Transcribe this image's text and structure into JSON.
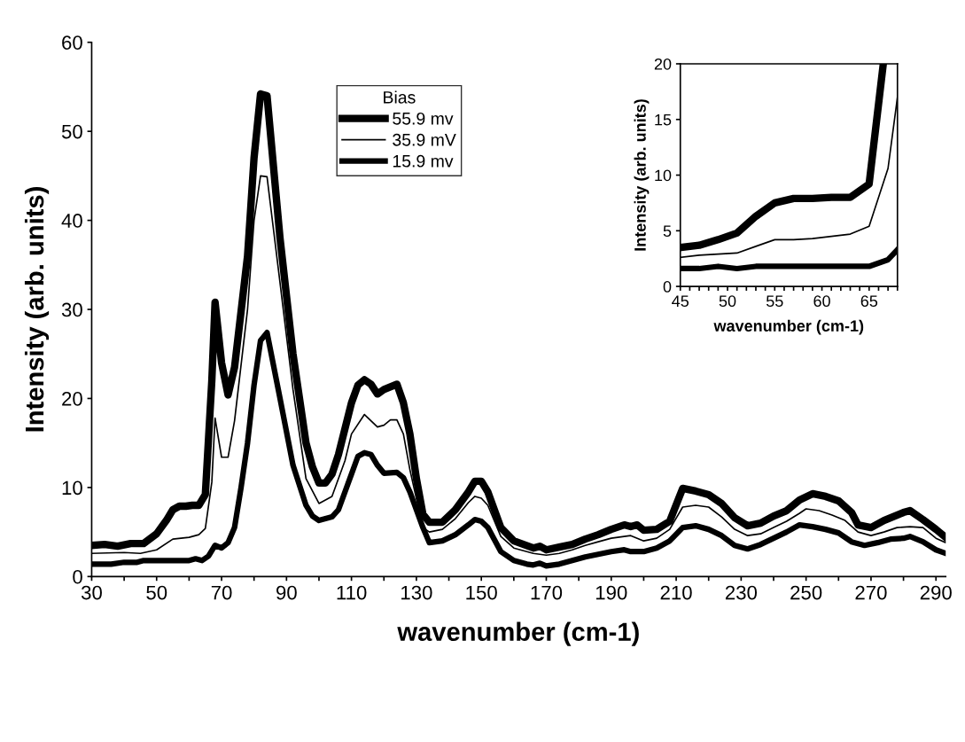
{
  "chart_data": [
    {
      "type": "line",
      "xlabel": "wavenumber (cm-1)",
      "ylabel": "Intensity (arb. units)",
      "legend_title": "Bias",
      "legend": "top",
      "marker": "none",
      "line_style": "solid",
      "grid": false,
      "xlim": [
        30,
        293
      ],
      "ylim": [
        0,
        60
      ],
      "yticks": [
        0,
        10,
        20,
        30,
        40,
        50,
        60
      ],
      "xticks": [
        30,
        {
          "value": 40,
          "label": null
        },
        50,
        {
          "value": 60,
          "label": null
        },
        70,
        {
          "value": 80,
          "label": null
        },
        90,
        {
          "value": 100,
          "label": null
        },
        110,
        {
          "value": 120,
          "label": null
        },
        130,
        {
          "value": 140,
          "label": null
        },
        150,
        {
          "value": 160,
          "label": null
        },
        170,
        {
          "value": 180,
          "label": null
        },
        190,
        {
          "value": 200,
          "label": null
        },
        210,
        {
          "value": 220,
          "label": null
        },
        230,
        {
          "value": 240,
          "label": null
        },
        250,
        {
          "value": 260,
          "label": null
        },
        270,
        {
          "value": 280,
          "label": null
        },
        290
      ],
      "series": [
        {
          "name": "55.9 mv",
          "color": "#000000",
          "x": [
            30,
            34,
            38,
            42,
            46,
            50,
            53,
            55,
            57,
            59,
            61,
            63,
            65,
            67,
            68,
            70,
            72,
            74,
            78,
            80,
            82,
            84,
            88,
            92,
            96,
            98,
            100,
            102,
            104,
            106,
            110,
            112,
            114,
            116,
            118,
            120,
            124,
            126,
            128,
            130,
            132,
            134,
            138,
            142,
            146,
            148,
            150,
            152,
            156,
            160,
            166,
            168,
            170,
            174,
            178,
            182,
            186,
            190,
            194,
            196,
            198,
            200,
            204,
            208,
            212,
            216,
            220,
            224,
            228,
            232,
            236,
            240,
            244,
            248,
            252,
            256,
            260,
            264,
            266,
            270,
            274,
            278,
            280,
            282,
            286,
            290,
            293
          ],
          "values": [
            3.5,
            3.6,
            3.4,
            3.7,
            3.7,
            4.8,
            6.3,
            7.5,
            7.9,
            7.9,
            8.0,
            8.0,
            9.2,
            22,
            30.8,
            24,
            20.4,
            23.5,
            36,
            47,
            54.2,
            54,
            38,
            25,
            15,
            12.3,
            10.5,
            10.5,
            11.5,
            13.7,
            19.5,
            21.5,
            22.1,
            21.6,
            20.5,
            21,
            21.6,
            19.5,
            16,
            11,
            7,
            6.1,
            6.1,
            7.5,
            9.5,
            10.7,
            10.7,
            9.5,
            5.5,
            4,
            3.2,
            3.4,
            3.0,
            3.3,
            3.6,
            4.2,
            4.7,
            5.3,
            5.8,
            5.6,
            5.8,
            5.2,
            5.3,
            6.2,
            9.9,
            9.6,
            9.2,
            8.2,
            6.6,
            5.7,
            6,
            6.8,
            7.4,
            8.6,
            9.3,
            9.0,
            8.5,
            7.2,
            5.8,
            5.5,
            6.3,
            6.9,
            7.2,
            7.4,
            6.4,
            5.3,
            4.4
          ]
        },
        {
          "name": "35.9 mV",
          "color": "#000000",
          "x": [
            30,
            40,
            45,
            50,
            55,
            60,
            63,
            65,
            67,
            68,
            70,
            72,
            74,
            78,
            80,
            82,
            84,
            88,
            92,
            96,
            100,
            104,
            108,
            110,
            114,
            118,
            120,
            122,
            124,
            126,
            128,
            132,
            134,
            138,
            142,
            146,
            148,
            150,
            152,
            156,
            160,
            166,
            170,
            174,
            178,
            182,
            186,
            190,
            196,
            200,
            204,
            208,
            212,
            216,
            220,
            224,
            228,
            232,
            236,
            240,
            244,
            248,
            250,
            254,
            258,
            262,
            266,
            270,
            274,
            278,
            282,
            286,
            290,
            293
          ],
          "values": [
            2.6,
            2.7,
            2.6,
            3.0,
            4.2,
            4.4,
            4.7,
            5.4,
            10.6,
            17.8,
            13.4,
            13.4,
            17.5,
            30,
            40,
            45,
            44.9,
            33,
            21,
            11,
            8.2,
            9,
            13,
            16,
            18.2,
            16.8,
            17,
            17.6,
            17.6,
            16,
            12,
            5.5,
            5,
            5.3,
            6.5,
            8.3,
            9,
            8.8,
            8,
            4.5,
            3.2,
            2.6,
            2.4,
            2.6,
            3,
            3.5,
            3.9,
            4.3,
            4.6,
            4.0,
            4.3,
            5.3,
            7.8,
            8.0,
            7.8,
            6.7,
            5.3,
            4.6,
            4.8,
            5.5,
            6.2,
            7.1,
            7.6,
            7.4,
            6.9,
            6.3,
            5.0,
            4.6,
            5.0,
            5.5,
            5.6,
            5.5,
            4.3,
            3.8
          ]
        },
        {
          "name": "15.9 mv",
          "color": "#000000",
          "x": [
            30,
            36,
            40,
            44,
            46,
            50,
            55,
            60,
            62,
            64,
            66,
            68,
            70,
            72,
            74,
            76,
            78,
            80,
            82,
            84,
            88,
            92,
            96,
            98,
            100,
            104,
            106,
            110,
            112,
            114,
            116,
            118,
            120,
            124,
            126,
            128,
            132,
            134,
            138,
            142,
            146,
            148,
            150,
            152,
            156,
            160,
            164,
            166,
            168,
            170,
            174,
            178,
            182,
            186,
            190,
            194,
            196,
            200,
            204,
            208,
            212,
            216,
            220,
            224,
            228,
            232,
            236,
            240,
            244,
            248,
            252,
            256,
            260,
            264,
            268,
            272,
            276,
            280,
            282,
            286,
            290,
            293
          ],
          "values": [
            1.4,
            1.4,
            1.6,
            1.6,
            1.8,
            1.8,
            1.8,
            1.8,
            2.0,
            1.8,
            2.3,
            3.5,
            3.2,
            3.8,
            5.5,
            10,
            15,
            21.5,
            26.5,
            27.4,
            20,
            12.5,
            8,
            6.8,
            6.3,
            6.7,
            7.5,
            11.5,
            13.5,
            13.9,
            13.7,
            12.5,
            11.6,
            11.7,
            11.1,
            9.5,
            5.5,
            3.8,
            4,
            4.7,
            5.8,
            6.4,
            6.2,
            5.5,
            2.8,
            1.8,
            1.4,
            1.3,
            1.5,
            1.2,
            1.4,
            1.8,
            2.2,
            2.5,
            2.8,
            3.0,
            2.8,
            2.8,
            3.2,
            4.0,
            5.5,
            5.7,
            5.3,
            4.6,
            3.5,
            3.1,
            3.6,
            4.3,
            5.0,
            5.8,
            5.6,
            5.3,
            4.9,
            3.9,
            3.5,
            3.8,
            4.2,
            4.3,
            4.5,
            3.9,
            3.0,
            2.6
          ]
        }
      ]
    },
    {
      "type": "line",
      "xlabel": "wavenumber (cm-1)",
      "ylabel": "Intensity (arb. units)",
      "legend": false,
      "marker": "none",
      "line_style": "solid",
      "grid": false,
      "xlim": [
        45,
        68
      ],
      "ylim": [
        0,
        20
      ],
      "yticks": [
        0,
        5,
        10,
        15,
        20
      ],
      "xticks": [
        45,
        {
          "value": 46,
          "label": null
        },
        {
          "value": 47,
          "label": null
        },
        {
          "value": 48,
          "label": null
        },
        {
          "value": 49,
          "label": null
        },
        50,
        {
          "value": 51,
          "label": null
        },
        {
          "value": 52,
          "label": null
        },
        {
          "value": 53,
          "label": null
        },
        {
          "value": 54,
          "label": null
        },
        55,
        {
          "value": 56,
          "label": null
        },
        {
          "value": 57,
          "label": null
        },
        {
          "value": 58,
          "label": null
        },
        {
          "value": 59,
          "label": null
        },
        60,
        {
          "value": 61,
          "label": null
        },
        {
          "value": 62,
          "label": null
        },
        {
          "value": 63,
          "label": null
        },
        {
          "value": 64,
          "label": null
        },
        65,
        {
          "value": 66,
          "label": null
        },
        {
          "value": 67,
          "label": null
        },
        {
          "value": 68,
          "label": null
        }
      ],
      "series": [
        {
          "color": "#000000",
          "x": [
            45,
            47,
            49,
            51,
            53,
            55,
            57,
            59,
            61,
            63,
            65,
            66.5
          ],
          "values": [
            3.5,
            3.7,
            4.2,
            4.8,
            6.3,
            7.5,
            7.9,
            7.9,
            8.0,
            8.0,
            9.2,
            20
          ]
        },
        {
          "color": "#000000",
          "x": [
            45,
            47,
            49,
            51,
            53,
            55,
            57,
            59,
            61,
            63,
            65,
            67,
            68
          ],
          "values": [
            2.6,
            2.8,
            2.9,
            3.0,
            3.6,
            4.2,
            4.2,
            4.3,
            4.5,
            4.7,
            5.4,
            10.6,
            17
          ]
        },
        {
          "color": "#000000",
          "x": [
            45,
            47,
            49,
            51,
            53,
            55,
            57,
            59,
            61,
            63,
            65,
            67,
            68
          ],
          "values": [
            1.6,
            1.6,
            1.8,
            1.6,
            1.8,
            1.8,
            1.8,
            1.8,
            1.8,
            1.8,
            1.8,
            2.4,
            3.3
          ]
        }
      ]
    }
  ]
}
